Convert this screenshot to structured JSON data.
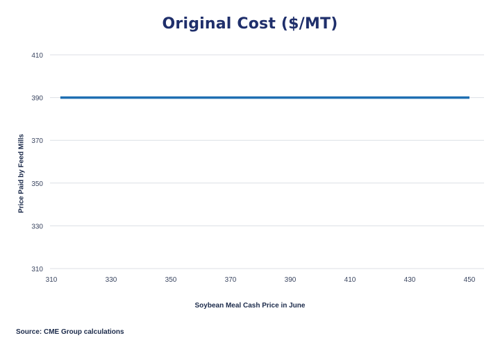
{
  "chart_data": {
    "type": "line",
    "title": "Original Cost ($/MT)",
    "xlabel": "Soybean Meal Cash Price in June",
    "ylabel": "Price Paid by Feed Mills",
    "xlim": [
      310,
      450
    ],
    "ylim": [
      310,
      410
    ],
    "x_ticks": [
      "310",
      "330",
      "350",
      "370",
      "390",
      "410",
      "430",
      "450"
    ],
    "y_ticks": [
      "410",
      "390",
      "370",
      "350",
      "330",
      "310"
    ],
    "grid": "horizontal",
    "series": [
      {
        "color": "#1f6fb2",
        "x": [
          313,
          450
        ],
        "y": [
          390,
          390
        ]
      }
    ]
  },
  "source": "Source: CME Group calculations"
}
